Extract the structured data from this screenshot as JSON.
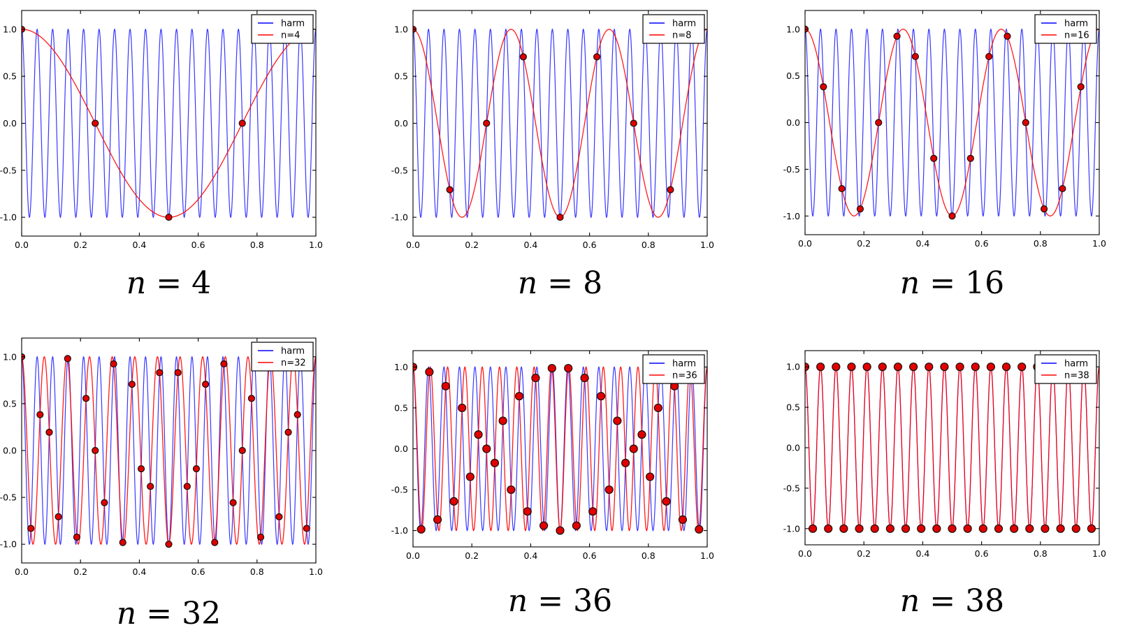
{
  "figure": {
    "background": "#ffffff",
    "harmonic": {
      "label": "harm",
      "function": "cos(2*pi*19*t)",
      "frequency": 19
    }
  },
  "colors": {
    "harmonic": "#0000ff",
    "alias": "#ff0000",
    "marker_fill": "#e00000",
    "marker_edge": "#111111",
    "axis": "#000000",
    "legend_bg": "#ffffff"
  },
  "axes_defaults": {
    "x_range": [
      0,
      1
    ],
    "ylim": [
      -1.2,
      1.2
    ],
    "xtick_values": [
      0.0,
      0.2,
      0.4,
      0.6,
      0.8,
      1.0
    ],
    "xtick_labels": [
      "0.0",
      "0.2",
      "0.4",
      "0.6",
      "0.8",
      "1.0"
    ],
    "ytick_values": [
      1.0,
      0.5,
      0.0,
      -0.5,
      -1.0
    ],
    "ytick_labels": [
      "1.0",
      "0.5",
      "0.0",
      "-0.5",
      "-1.0"
    ],
    "grid": false,
    "legend_position": "upper right"
  },
  "chart_data": [
    {
      "id": "n4",
      "type": "line",
      "caption": {
        "italic": "n",
        "rest": " = 4"
      },
      "legend": [
        {
          "label": "harm",
          "color_key": "harmonic"
        },
        {
          "label": "n=4",
          "color_key": "alias"
        }
      ],
      "harmonic_frequency": 19,
      "alias_frequency": 1,
      "n_samples": 4,
      "sample_times_rule": "t_k = k/4, k=0..3",
      "samples_y": [
        1.0,
        0.0,
        -1.0,
        0.0
      ]
    },
    {
      "id": "n8",
      "type": "line",
      "caption": {
        "italic": "n",
        "rest": " = 8"
      },
      "legend": [
        {
          "label": "harm",
          "color_key": "harmonic"
        },
        {
          "label": "n=8",
          "color_key": "alias"
        }
      ],
      "harmonic_frequency": 19,
      "alias_frequency": 3,
      "n_samples": 8,
      "sample_times_rule": "t_k = k/8, k=0..7",
      "samples_y": [
        1.0,
        -0.707,
        0.0,
        0.707,
        -1.0,
        0.707,
        0.0,
        -0.707
      ]
    },
    {
      "id": "n16",
      "type": "line",
      "caption": {
        "italic": "n",
        "rest": " = 16"
      },
      "legend": [
        {
          "label": "harm",
          "color_key": "harmonic"
        },
        {
          "label": "n=16",
          "color_key": "alias"
        }
      ],
      "harmonic_frequency": 19,
      "alias_frequency": 3,
      "n_samples": 16,
      "sample_times_rule": "t_k = k/16, k=0..15",
      "samples_y": [
        1.0,
        0.383,
        -0.707,
        -0.924,
        0.0,
        0.924,
        0.707,
        -0.383,
        -1.0,
        -0.383,
        0.707,
        0.924,
        0.0,
        -0.924,
        -0.707,
        0.383
      ]
    },
    {
      "id": "n32",
      "type": "line",
      "caption": {
        "italic": "n",
        "rest": " = 32"
      },
      "legend": [
        {
          "label": "harm",
          "color_key": "harmonic"
        },
        {
          "label": "n=32",
          "color_key": "alias"
        }
      ],
      "harmonic_frequency": 19,
      "alias_frequency": 13,
      "n_samples": 32,
      "sample_times_rule": "t_k = k/32, k=0..31",
      "samples_y": [
        1.0,
        -0.831,
        0.383,
        0.195,
        -0.707,
        0.981,
        -0.924,
        0.556,
        0.0,
        -0.556,
        0.924,
        -0.981,
        0.707,
        -0.195,
        -0.383,
        0.831,
        -1.0,
        0.831,
        -0.383,
        -0.195,
        0.707,
        -0.981,
        0.924,
        -0.556,
        0.0,
        0.556,
        -0.924,
        0.981,
        -0.707,
        0.195,
        0.383,
        -0.831
      ]
    },
    {
      "id": "n36",
      "type": "line",
      "caption": {
        "italic": "n",
        "rest": " = 36"
      },
      "legend": [
        {
          "label": "harm",
          "color_key": "harmonic"
        },
        {
          "label": "n=36",
          "color_key": "alias"
        }
      ],
      "harmonic_frequency": 19,
      "alias_frequency": 17,
      "n_samples": 36,
      "sample_times_rule": "t_k = k/36, k=0..35",
      "samples_y": [
        1.0,
        -0.985,
        0.94,
        -0.866,
        0.766,
        -0.643,
        0.5,
        -0.342,
        0.174,
        0.0,
        -0.174,
        0.342,
        -0.5,
        0.643,
        -0.766,
        0.866,
        -0.94,
        0.985,
        -1.0,
        0.985,
        -0.94,
        0.866,
        -0.766,
        0.643,
        -0.5,
        0.342,
        -0.174,
        0.0,
        0.174,
        -0.342,
        0.5,
        -0.643,
        0.766,
        -0.866,
        0.94,
        -0.985
      ]
    },
    {
      "id": "n38",
      "type": "line",
      "caption": {
        "italic": "n",
        "rest": " = 38"
      },
      "legend": [
        {
          "label": "harm",
          "color_key": "harmonic"
        },
        {
          "label": "n=38",
          "color_key": "alias"
        }
      ],
      "harmonic_frequency": 19,
      "alias_frequency": 19,
      "n_samples": 38,
      "sample_times_rule": "t_k = k/38, k=0..37",
      "samples_y": [
        1,
        -1,
        1,
        -1,
        1,
        -1,
        1,
        -1,
        1,
        -1,
        1,
        -1,
        1,
        -1,
        1,
        -1,
        1,
        -1,
        1,
        -1,
        1,
        -1,
        1,
        -1,
        1,
        -1,
        1,
        -1,
        1,
        -1,
        1,
        -1,
        1,
        -1,
        1,
        -1,
        1,
        -1
      ]
    }
  ]
}
